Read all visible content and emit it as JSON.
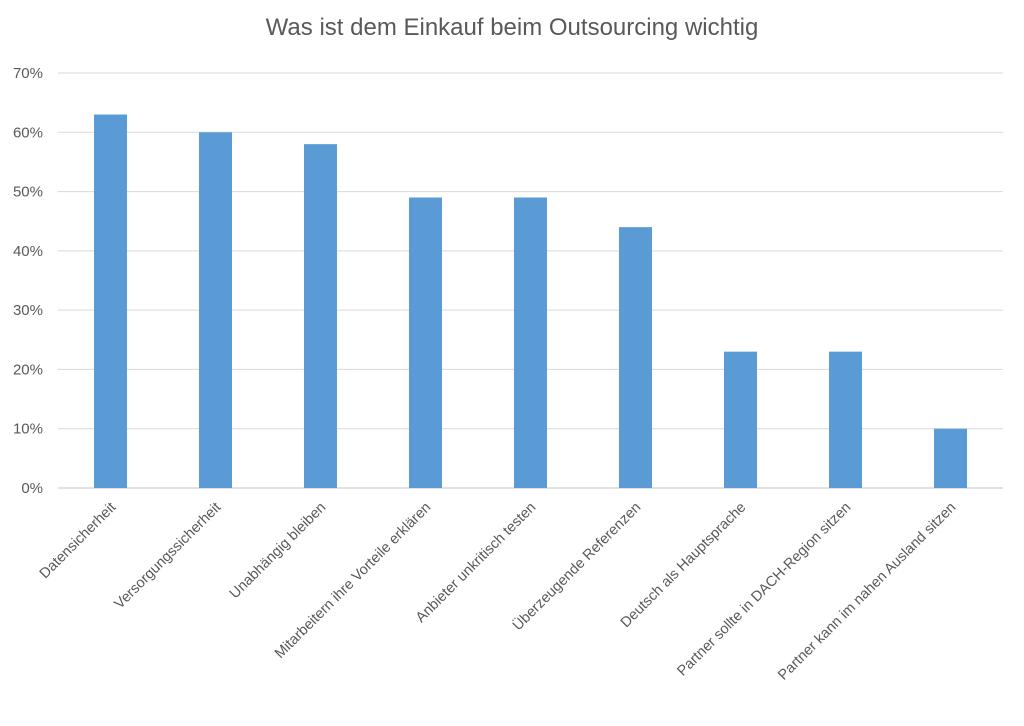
{
  "chart_data": {
    "type": "bar",
    "title": "Was ist dem Einkauf beim Outsourcing wichtig",
    "xlabel": "",
    "ylabel": "",
    "categories": [
      "Datensicherheit",
      "Versorgungssicherheit",
      "Unabhängig bleiben",
      "Mitarbeitern ihre Vorteile erklären",
      "Anbieter unkritisch testen",
      "Überzeugende Referenzen",
      "Deutsch als Hauptsprache",
      "Partner sollte in DACH-Region sitzen",
      "Partner kann im nahen Ausland sitzen"
    ],
    "values": [
      63,
      60,
      58,
      49,
      49,
      44,
      23,
      23,
      10
    ],
    "ylim": [
      0,
      70
    ],
    "y_ticks": [
      "0%",
      "10%",
      "20%",
      "30%",
      "40%",
      "50%",
      "60%",
      "70%"
    ],
    "grid": true,
    "legend": "none",
    "bar_color": "#5b9bd5",
    "grid_color": "#d9d9d9"
  }
}
